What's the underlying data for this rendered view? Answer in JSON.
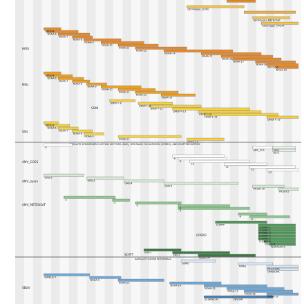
{
  "chart_data": {
    "type": "timeline",
    "title": "",
    "x_range": [
      0,
      100
    ],
    "sections": [
      {
        "label": "",
        "color": "#f0a020"
      },
      {
        "label": "SATELLITE ATMOSPHERIC MOTION VECTORS (AMV), GPS RADIO OCCULTATION (GPSRO), AND SCATTEROMETERS",
        "color": "#7cbf7c"
      },
      {
        "label": "SATELLITE OZONE RETRIEVALS",
        "color": "#6fa8d6"
      }
    ],
    "groups": [
      {
        "label": "HIRS",
        "section": 0
      },
      {
        "label": "MSU",
        "section": 0
      },
      {
        "label": "SSMI",
        "section": 0
      },
      {
        "label": "SSU",
        "section": 0
      },
      {
        "label": "AMV_GOES",
        "section": 1
      },
      {
        "label": "AMV_Japan",
        "section": 1
      },
      {
        "label": "AMV_METEOSAT",
        "section": 1
      },
      {
        "label": "GPSRO",
        "section": 1
      },
      {
        "label": "SCATT",
        "section": 1
      },
      {
        "label": "SBUV",
        "section": 2
      }
    ],
    "bars": [
      {
        "label": "GEOimager_GOES",
        "start": 60,
        "end": 80,
        "color": "#f3c24b",
        "row": 2
      },
      {
        "label": "",
        "start": 74,
        "end": 84,
        "color": "#e88a2a",
        "row": 0
      },
      {
        "label": "",
        "start": 80,
        "end": 98,
        "color": "#f0b040",
        "row": 4
      },
      {
        "label": "GEOimager_METEOSAT",
        "start": 83,
        "end": 96,
        "color": "#f3c24b",
        "row": 6
      },
      {
        "label": "GEOimager_MTSAT",
        "start": 86,
        "end": 99,
        "color": "#f3c24b",
        "row": 8
      },
      {
        "label": "TIROS-N",
        "start": 10,
        "end": 16,
        "color": "#e88a2a",
        "row": 10
      },
      {
        "label": "NOAA-6",
        "start": 11,
        "end": 22,
        "color": "#e88a2a",
        "row": 11
      },
      {
        "label": "NOAA-7",
        "start": 15,
        "end": 26,
        "color": "#e88a2a",
        "row": 12
      },
      {
        "label": "NOAA-8",
        "start": 20,
        "end": 27,
        "color": "#e88a2a",
        "row": 13
      },
      {
        "label": "NOAA-9",
        "start": 24,
        "end": 37,
        "color": "#e88a2a",
        "row": 14
      },
      {
        "label": "NOAA-10",
        "start": 30,
        "end": 45,
        "color": "#e88a2a",
        "row": 15
      },
      {
        "label": "NOAA-11",
        "start": 36,
        "end": 50,
        "color": "#e88a2a",
        "row": 16
      },
      {
        "label": "NOAA-12",
        "start": 42,
        "end": 60,
        "color": "#e88a2a",
        "row": 17
      },
      {
        "label": "NOAA-14",
        "start": 52,
        "end": 76,
        "color": "#e88a2a",
        "row": 18
      },
      {
        "label": "NOAA-15",
        "start": 65,
        "end": 86,
        "color": "#e88a2a",
        "row": 19
      },
      {
        "label": "NOAA-16",
        "start": 72,
        "end": 90,
        "color": "#e88a2a",
        "row": 20
      },
      {
        "label": "NOAA-17",
        "start": 76,
        "end": 93,
        "color": "#e88a2a",
        "row": 21
      },
      {
        "label": "NOAA-18",
        "start": 84,
        "end": 98,
        "color": "#e88a2a",
        "row": 22
      },
      {
        "label": "METOP-A",
        "start": 88,
        "end": 99,
        "color": "#e88a2a",
        "row": 23
      },
      {
        "label": "NOAA-19",
        "start": 91,
        "end": 99,
        "color": "#e88a2a",
        "row": 24
      },
      {
        "label": "TIROS-N",
        "start": 10,
        "end": 16,
        "color": "#f0a020",
        "row": 26
      },
      {
        "label": "NOAA-6",
        "start": 11,
        "end": 20,
        "color": "#f0a020",
        "row": 27
      },
      {
        "label": "NOAA-7",
        "start": 15,
        "end": 24,
        "color": "#f0a020",
        "row": 28
      },
      {
        "label": "NOAA-8",
        "start": 20,
        "end": 26,
        "color": "#f0a020",
        "row": 29
      },
      {
        "label": "NOAA-9",
        "start": 25,
        "end": 32,
        "color": "#f0a020",
        "row": 30
      },
      {
        "label": "NOAA-10",
        "start": 30,
        "end": 44,
        "color": "#f0a020",
        "row": 31
      },
      {
        "label": "NOAA-11",
        "start": 36,
        "end": 49,
        "color": "#f0a020",
        "row": 32
      },
      {
        "label": "NOAA-12",
        "start": 42,
        "end": 57,
        "color": "#f0a020",
        "row": 33
      },
      {
        "label": "NOAA-14",
        "start": 51,
        "end": 63,
        "color": "#f0a020",
        "row": 34
      },
      {
        "label": "DMSP F-8",
        "start": 33,
        "end": 42,
        "color": "#f6d23f",
        "row": 36
      },
      {
        "label": "DMSP F-10",
        "start": 43,
        "end": 55,
        "color": "#f6d23f",
        "row": 37
      },
      {
        "label": "DMSP F-11",
        "start": 47,
        "end": 65,
        "color": "#f6d23f",
        "row": 38
      },
      {
        "label": "DMSP F-13",
        "start": 55,
        "end": 82,
        "color": "#f6d23f",
        "row": 39
      },
      {
        "label": "DMSP F-14",
        "start": 64,
        "end": 86,
        "color": "#f6d23f",
        "row": 40
      },
      {
        "label": "DMSP F-15",
        "start": 66,
        "end": 92,
        "color": "#f6d23f",
        "row": 41
      },
      {
        "label": "DMSP F-16",
        "start": 88,
        "end": 99,
        "color": "#f6d23f",
        "row": 42
      },
      {
        "label": "TIROS-N",
        "start": 10,
        "end": 15,
        "color": "#f6d23f",
        "row": 44
      },
      {
        "label": "NOAA-6",
        "start": 11,
        "end": 19,
        "color": "#f6d23f",
        "row": 45
      },
      {
        "label": "NOAA-7",
        "start": 15,
        "end": 22,
        "color": "#f6d23f",
        "row": 46
      },
      {
        "label": "NOAA-8",
        "start": 20,
        "end": 27,
        "color": "#f6d23f",
        "row": 47
      },
      {
        "label": "NOAA-9",
        "start": 24,
        "end": 31,
        "color": "#f6d23f",
        "row": 48
      },
      {
        "label": "NOAA-11",
        "start": 36,
        "end": 58,
        "color": "#f6d23f",
        "row": 49
      },
      {
        "label": "NOAA-14",
        "start": 60,
        "end": 73,
        "color": "#f6d23f",
        "row": 50
      },
      {
        "label": "AMV_EOS",
        "start": 83,
        "end": 90,
        "color": "#ffffff",
        "row": 53
      },
      {
        "label": "Aqua",
        "start": 90,
        "end": 98,
        "color": "#e6f2e6",
        "row": 53
      },
      {
        "label": "Terra",
        "start": 90,
        "end": 98,
        "color": "#e6f2e6",
        "row": 54
      },
      {
        "label": "-8",
        "start": 55,
        "end": 73,
        "color": "#ffffff",
        "row": 56
      },
      {
        "label": "-9",
        "start": 57,
        "end": 74,
        "color": "#ffffff",
        "row": 57
      },
      {
        "label": "-10",
        "start": 61,
        "end": 82,
        "color": "#ffffff",
        "row": 58
      },
      {
        "label": "-12",
        "start": 73,
        "end": 88,
        "color": "#ffffff",
        "row": 59
      },
      {
        "label": "-11",
        "start": 82,
        "end": 98,
        "color": "#ffffff",
        "row": 60
      },
      {
        "label": "-13",
        "start": 88,
        "end": 99,
        "color": "#ffffff",
        "row": 61
      },
      {
        "label": "-X",
        "start": 10,
        "end": 20,
        "color": "#ffffff",
        "row": 52
      },
      {
        "label": "GMS-X",
        "start": 10,
        "end": 24,
        "color": "#d3ead3",
        "row": 63
      },
      {
        "label": "GMS-3",
        "start": 25,
        "end": 38,
        "color": "#d3ead3",
        "row": 64
      },
      {
        "label": "GMS-4",
        "start": 38,
        "end": 52,
        "color": "#d3ead3",
        "row": 65
      },
      {
        "label": "GMS-5",
        "start": 52,
        "end": 78,
        "color": "#d3ead3",
        "row": 66
      },
      {
        "label": "MTSAT-1R",
        "start": 83,
        "end": 94,
        "color": "#d3ead3",
        "row": 67
      },
      {
        "label": "MTSAT-2",
        "start": 92,
        "end": 99,
        "color": "#d3ead3",
        "row": 68
      },
      {
        "label": "-2",
        "start": 17,
        "end": 35,
        "color": "#8cc78c",
        "row": 71
      },
      {
        "label": "-3",
        "start": 34,
        "end": 40,
        "color": "#8cc78c",
        "row": 72
      },
      {
        "label": "-5",
        "start": 42,
        "end": 58,
        "color": "#8cc78c",
        "row": 73
      },
      {
        "label": "-6",
        "start": 57,
        "end": 75,
        "color": "#8cc78c",
        "row": 74
      },
      {
        "label": "-7",
        "start": 57,
        "end": 82,
        "color": "#8cc78c",
        "row": 75
      },
      {
        "label": "-8",
        "start": 78,
        "end": 88,
        "color": "#8cc78c",
        "row": 77
      },
      {
        "label": "-9",
        "start": 82,
        "end": 96,
        "color": "#8cc78c",
        "row": 78
      },
      {
        "label": "CHAMP",
        "start": 70,
        "end": 88,
        "color": "#4f9a5a",
        "row": 80
      },
      {
        "label": "COSMIC-1",
        "start": 85,
        "end": 98,
        "color": "#4f9a5a",
        "row": 81
      },
      {
        "label": "COSMIC-2",
        "start": 85,
        "end": 98,
        "color": "#4f9a5a",
        "row": 82
      },
      {
        "label": "COSMIC-3",
        "start": 85,
        "end": 98,
        "color": "#4f9a5a",
        "row": 83
      },
      {
        "label": "COSMIC-4",
        "start": 85,
        "end": 98,
        "color": "#4f9a5a",
        "row": 84
      },
      {
        "label": "COSMIC-5",
        "start": 85,
        "end": 98,
        "color": "#4f9a5a",
        "row": 85
      },
      {
        "label": "COSMIC-6",
        "start": 85,
        "end": 98,
        "color": "#4f9a5a",
        "row": 86
      },
      {
        "label": "GRACE-A",
        "start": 87,
        "end": 98,
        "color": "#4f9a5a",
        "row": 87
      },
      {
        "label": "TERRASAR-X",
        "start": 89,
        "end": 98,
        "color": "#4f9a5a",
        "row": 88
      },
      {
        "label": "ERS-1",
        "start": 45,
        "end": 58,
        "color": "#3d7a45",
        "row": 90
      },
      {
        "label": "ERS-2",
        "start": 55,
        "end": 75,
        "color": "#3d7a45",
        "row": 91
      },
      {
        "label": "QuikSCAT",
        "start": 64,
        "end": 84,
        "color": "#3d7a45",
        "row": 92
      },
      {
        "label": "GOME",
        "start": 58,
        "end": 70,
        "color": "#d6e6f4",
        "row": 94
      },
      {
        "label": "MIPAS",
        "start": 78,
        "end": 90,
        "color": "#d6e6f4",
        "row": 95
      },
      {
        "label": "MLS/AURA",
        "start": 88,
        "end": 99,
        "color": "#d6e6f4",
        "row": 96
      },
      {
        "label": "OMI/AURA",
        "start": 88,
        "end": 99,
        "color": "#d6e6f4",
        "row": 97
      },
      {
        "label": "NIMBUS-7",
        "start": 10,
        "end": 26,
        "color": "#6fa8d6",
        "row": 99
      },
      {
        "label": "NOAA-9",
        "start": 26,
        "end": 37,
        "color": "#6fa8d6",
        "row": 100
      },
      {
        "label": "NOAA-11",
        "start": 36,
        "end": 52,
        "color": "#6fa8d6",
        "row": 101
      },
      {
        "label": "NOAA-14",
        "start": 54,
        "end": 72,
        "color": "#6fa8d6",
        "row": 102
      },
      {
        "label": "NOAA-16",
        "start": 66,
        "end": 88,
        "color": "#6fa8d6",
        "row": 103
      },
      {
        "label": "NOAA-17",
        "start": 74,
        "end": 94,
        "color": "#6fa8d6",
        "row": 104
      },
      {
        "label": "NOAA-18",
        "start": 80,
        "end": 97,
        "color": "#6fa8d6",
        "row": 105
      },
      {
        "label": "NOAA-19",
        "start": 88,
        "end": 99,
        "color": "#6fa8d6",
        "row": 106
      },
      {
        "label": "SCIAMACHY",
        "start": 66,
        "end": 90,
        "color": "#4a7fb0",
        "row": 107
      },
      {
        "label": "ENVISAT",
        "start": 76,
        "end": 90,
        "color": "#4a7fb0",
        "row": 107
      }
    ]
  }
}
